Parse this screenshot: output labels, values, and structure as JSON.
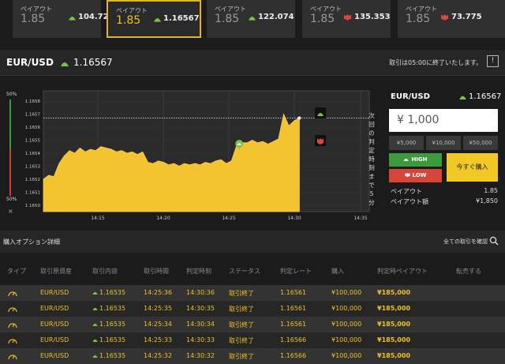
{
  "payout_cards": [
    {
      "label": "ペイアウト",
      "rate": "1.85",
      "price": "104.726",
      "direction": "up"
    },
    {
      "label": "ペイアウト",
      "rate": "1.85",
      "price": "1.16567",
      "direction": "up",
      "active": true
    },
    {
      "label": "ペイアウト",
      "rate": "1.85",
      "price": "122.074",
      "direction": "up"
    },
    {
      "label": "ペイアウト",
      "rate": "1.85",
      "price": "135.353",
      "direction": "down"
    },
    {
      "label": "ペイアウト",
      "rate": "1.85",
      "price": "73.775",
      "direction": "down"
    }
  ],
  "header": {
    "pair": "EUR/USD",
    "price": "1.16567",
    "notice": "取引は05:00に終了いたします。",
    "help_icon": "help-icon"
  },
  "chart_side": {
    "top_pct": "50%",
    "bottom_pct": "50%",
    "close": "×"
  },
  "chart_data": {
    "type": "area",
    "y_ticks": [
      "1.1658",
      "1.1657",
      "1.1656",
      "1.1655",
      "1.1654",
      "1.1653",
      "1.1652",
      "1.1651",
      "1.1650"
    ],
    "x_ticks": [
      "14:15",
      "14:20",
      "14:25",
      "14:30",
      "14:35"
    ],
    "ylim": [
      1.16495,
      1.16588
    ],
    "current_level": 1.16567,
    "deadline_label": "次回の判定時刻まで5分",
    "fill_color": "#f4c430",
    "points": [
      [
        0,
        1.1652
      ],
      [
        2,
        1.16523
      ],
      [
        4,
        1.16522
      ],
      [
        6,
        1.16532
      ],
      [
        8,
        1.16538
      ],
      [
        10,
        1.16542
      ],
      [
        12,
        1.1654
      ],
      [
        14,
        1.16544
      ],
      [
        16,
        1.16541
      ],
      [
        18,
        1.16543
      ],
      [
        20,
        1.16542
      ],
      [
        22,
        1.16545
      ],
      [
        24,
        1.16544
      ],
      [
        26,
        1.16543
      ],
      [
        28,
        1.16541
      ],
      [
        30,
        1.16542
      ],
      [
        32,
        1.1654
      ],
      [
        34,
        1.16541
      ],
      [
        36,
        1.16539
      ],
      [
        38,
        1.16541
      ],
      [
        40,
        1.16533
      ],
      [
        42,
        1.16532
      ],
      [
        44,
        1.16534
      ],
      [
        46,
        1.16533
      ],
      [
        48,
        1.16531
      ],
      [
        50,
        1.16532
      ],
      [
        52,
        1.1653
      ],
      [
        54,
        1.16532
      ],
      [
        56,
        1.16531
      ],
      [
        58,
        1.16532
      ],
      [
        60,
        1.16531
      ],
      [
        62,
        1.16533
      ],
      [
        64,
        1.16532
      ],
      [
        66,
        1.16534
      ],
      [
        68,
        1.16535
      ],
      [
        70,
        1.16532
      ],
      [
        72,
        1.16534
      ],
      [
        74,
        1.16546
      ],
      [
        76,
        1.16548
      ],
      [
        78,
        1.16548
      ],
      [
        80,
        1.1655
      ],
      [
        82,
        1.16548
      ],
      [
        84,
        1.16549
      ],
      [
        86,
        1.16547
      ],
      [
        88,
        1.16549
      ],
      [
        90,
        1.16551
      ],
      [
        92,
        1.1657
      ],
      [
        94,
        1.16561
      ],
      [
        96,
        1.16565
      ],
      [
        98,
        1.16567
      ]
    ]
  },
  "panel": {
    "pair": "EUR/USD",
    "price": "1.16567",
    "amount": "¥ 1,000",
    "quick_amounts": [
      "¥5,000",
      "¥10,000",
      "¥50,000"
    ],
    "high_label": "HIGH",
    "low_label": "LOW",
    "buy_label": "今すぐ購入",
    "payout_label": "ペイアウト",
    "payout_value": "1.85",
    "payout_amount_label": "ペイアウト額",
    "payout_amount_value": "¥1,850"
  },
  "table": {
    "title": "購入オプション詳細",
    "view_all": "全ての取引を確認",
    "columns": [
      "タイプ",
      "取引原資産",
      "取引内容",
      "取引時間",
      "判定時刻",
      "ステータス",
      "判定レート",
      "購入",
      "判定時ペイアウト",
      "転売する"
    ],
    "rows": [
      {
        "asset": "EUR/USD",
        "rate": "1.16535",
        "time": "14:25:36",
        "judge": "14:30:36",
        "status": "取引終了",
        "jrate": "1.16561",
        "buy": "¥100,000",
        "payout": "¥185,000"
      },
      {
        "asset": "EUR/USD",
        "rate": "1.16535",
        "time": "14:25:35",
        "judge": "14:30:35",
        "status": "取引終了",
        "jrate": "1.16561",
        "buy": "¥100,000",
        "payout": "¥185,000"
      },
      {
        "asset": "EUR/USD",
        "rate": "1.16535",
        "time": "14:25:34",
        "judge": "14:30:34",
        "status": "取引終了",
        "jrate": "1.16561",
        "buy": "¥100,000",
        "payout": "¥185,000"
      },
      {
        "asset": "EUR/USD",
        "rate": "1.16535",
        "time": "14:25:33",
        "judge": "14:30:33",
        "status": "取引終了",
        "jrate": "1.16566",
        "buy": "¥100,000",
        "payout": "¥185,000"
      },
      {
        "asset": "EUR/USD",
        "rate": "1.16535",
        "time": "14:25:32",
        "judge": "14:30:32",
        "status": "取引終了",
        "jrate": "1.16566",
        "buy": "¥100,000",
        "payout": "¥185,000"
      }
    ]
  }
}
